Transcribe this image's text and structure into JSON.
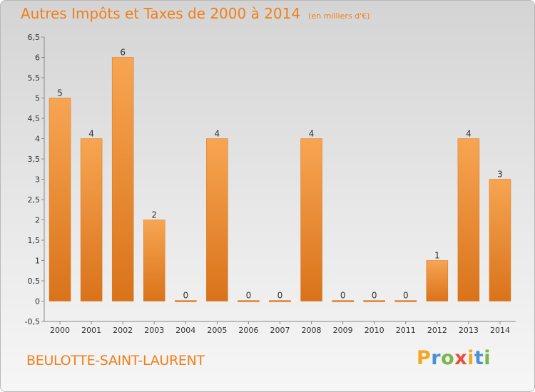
{
  "header": {
    "title": "Autres Impôts et Taxes de 2000 à 2014",
    "subtitle": "(en milliers d'€)"
  },
  "footer": {
    "commune": "BEULOTTE-SAINT-LAURENT",
    "logo": {
      "letters": [
        "P",
        "r",
        "o",
        "x",
        "i",
        "t",
        "i"
      ],
      "colors": [
        "#f5a623",
        "#4a90d9",
        "#7ab648",
        "#e94e3c",
        "#f5a623",
        "#4a90d9",
        "#7ab648"
      ]
    }
  },
  "colors": {
    "accent": "#f07f1a",
    "bar_light": "#f7a552",
    "bar_dark": "#d9731a"
  },
  "chart_data": {
    "type": "bar",
    "title": "Autres Impôts et Taxes de 2000 à 2014",
    "subtitle": "(en milliers d'€)",
    "xlabel": "",
    "ylabel": "",
    "categories": [
      "2000",
      "2001",
      "2002",
      "2003",
      "2004",
      "2005",
      "2006",
      "2007",
      "2008",
      "2009",
      "2010",
      "2011",
      "2012",
      "2013",
      "2014"
    ],
    "values": [
      5,
      4,
      6,
      2,
      0,
      4,
      0,
      0,
      4,
      0,
      0,
      0,
      1,
      4,
      3
    ],
    "data_labels": [
      "5",
      "4",
      "6",
      "2",
      "0",
      "4",
      "0",
      "0",
      "4",
      "0",
      "0",
      "0",
      "1",
      "4",
      "3"
    ],
    "ylim": [
      -0.5,
      6.5
    ],
    "yticks": [
      "-0,5",
      "0",
      "0,5",
      "1",
      "1,5",
      "2",
      "2,5",
      "3",
      "3,5",
      "4",
      "4,5",
      "5",
      "5,5",
      "6",
      "6,5"
    ],
    "ytick_values": [
      -0.5,
      0,
      0.5,
      1,
      1.5,
      2,
      2.5,
      3,
      3.5,
      4,
      4.5,
      5,
      5.5,
      6,
      6.5
    ],
    "grid": false,
    "legend": "none"
  }
}
